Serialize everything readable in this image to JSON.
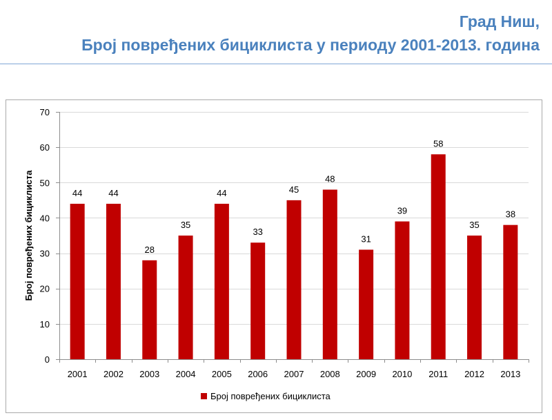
{
  "slide": {
    "title_line1": "Град Ниш,",
    "title_line2": "Број повређених бициклиста у периоду 2001-2013. година"
  },
  "chart_data": {
    "type": "bar",
    "categories": [
      "2001",
      "2002",
      "2003",
      "2004",
      "2005",
      "2006",
      "2007",
      "2008",
      "2009",
      "2010",
      "2011",
      "2012",
      "2013"
    ],
    "values": [
      44,
      44,
      28,
      35,
      44,
      33,
      45,
      48,
      31,
      39,
      58,
      35,
      38
    ],
    "series": [
      {
        "name": "Број повређених бициклиста",
        "values": [
          44,
          44,
          28,
          35,
          44,
          33,
          45,
          48,
          31,
          39,
          58,
          35,
          38
        ]
      }
    ],
    "title": "",
    "xlabel": "",
    "ylabel": "Број повређених бициклиста",
    "ylim": [
      0,
      70
    ],
    "yticks": [
      0,
      10,
      20,
      30,
      40,
      50,
      60,
      70
    ],
    "grid": true,
    "legend": "bottom",
    "bar_color": "#c00000",
    "grid_color": "#d9d9d9"
  }
}
